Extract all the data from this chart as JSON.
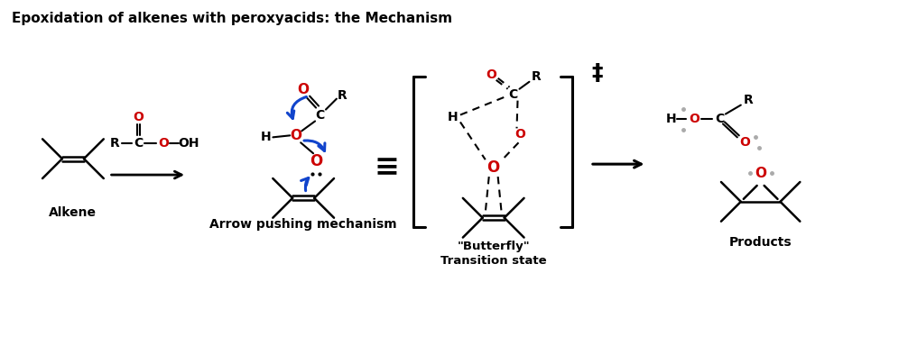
{
  "title": "Epoxidation of alkenes with peroxyacids: the Mechanism",
  "bg_color": "#ffffff",
  "red": "#cc0000",
  "blue": "#1144cc",
  "black": "#000000",
  "gray": "#aaaaaa",
  "label_alkene": "Alkene",
  "label_arrow_push": "Arrow pushing mechanism",
  "label_butterfly": "\"Butterfly\"\nTransition state",
  "label_products": "Products"
}
